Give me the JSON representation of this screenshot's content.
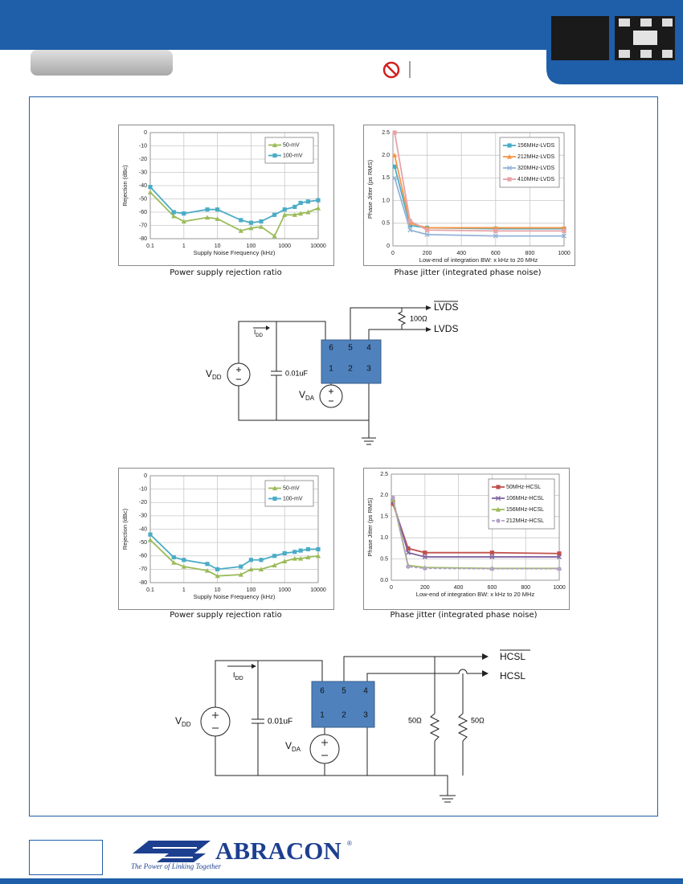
{
  "chart_data": [
    {
      "type": "line",
      "x_label": "Supply Noise Frequency (kHz)",
      "y_label": "Rejection (dBc)",
      "xlog": true,
      "grid": true,
      "legend": "upper right",
      "x": [
        0.1,
        0.5,
        1,
        5,
        10,
        50,
        100,
        200,
        500,
        1000,
        2000,
        3000,
        5000,
        10000
      ],
      "xlim": [
        0.1,
        10000
      ],
      "xticks": [
        0.1,
        1,
        10,
        100,
        1000,
        10000
      ],
      "ylim": [
        -80,
        0
      ],
      "yticks": [
        0,
        -10,
        -20,
        -30,
        -40,
        -50,
        -60,
        -70,
        -80
      ],
      "series": [
        {
          "name": "50-mV",
          "color": "#9bbb59",
          "marker": "triangle",
          "values": [
            -45,
            -63,
            -67,
            -64,
            -65,
            -74,
            -72,
            -71,
            -78,
            -62,
            -62,
            -61,
            -60,
            -57
          ]
        },
        {
          "name": "100-mV",
          "color": "#4bacc6",
          "marker": "square",
          "values": [
            -41,
            -60,
            -61,
            -58,
            -58,
            -66,
            -68,
            -67,
            -62,
            -58,
            -56,
            -53,
            -52,
            -51
          ]
        }
      ]
    },
    {
      "type": "line",
      "x_label": "Low-end of integration BW: x kHz to 20 MHz",
      "y_label": "Phase Jitter (ps RMS)",
      "xlog": false,
      "grid": true,
      "legend": "upper right",
      "x": [
        10,
        100,
        200,
        600,
        1000
      ],
      "xlim": [
        0,
        1000
      ],
      "xticks": [
        0,
        200,
        400,
        600,
        800,
        1000
      ],
      "ylim": [
        0,
        2.5
      ],
      "yticks": [
        0,
        0.5,
        {
          "value": 1,
          "label": "1.0"
        },
        1.5,
        {
          "value": 2,
          "label": "2.0"
        },
        2.5
      ],
      "series": [
        {
          "name": "156MHz-LVDS",
          "color": "#4bacc6",
          "marker": "square",
          "values": [
            1.75,
            0.45,
            0.4,
            0.38,
            0.38
          ]
        },
        {
          "name": "212MHz-LVDS",
          "color": "#f79646",
          "marker": "triangle",
          "values": [
            2.0,
            0.5,
            0.4,
            0.4,
            0.4
          ]
        },
        {
          "name": "320MHz-LVDS",
          "color": "#95b3d7",
          "marker": "x",
          "values": [
            1.5,
            0.35,
            0.25,
            0.22,
            0.22
          ]
        },
        {
          "name": "410MHz-LVDS",
          "color": "#e6a3a6",
          "marker": "square",
          "values": [
            2.5,
            0.55,
            0.35,
            0.33,
            0.33
          ]
        }
      ]
    },
    {
      "type": "line",
      "x_label": "Supply Noise Frequency (kHz)",
      "y_label": "Rejection (dBc)",
      "xlog": true,
      "grid": true,
      "legend": "upper right",
      "x": [
        0.1,
        0.5,
        1,
        5,
        10,
        50,
        100,
        200,
        500,
        1000,
        2000,
        3000,
        5000,
        10000
      ],
      "xlim": [
        0.1,
        10000
      ],
      "xticks": [
        0.1,
        1,
        10,
        100,
        1000,
        10000
      ],
      "ylim": [
        -80,
        0
      ],
      "yticks": [
        0,
        -10,
        -20,
        -30,
        -40,
        -50,
        -60,
        -70,
        -80
      ],
      "series": [
        {
          "name": "50-mV",
          "color": "#9bbb59",
          "marker": "triangle",
          "values": [
            -48,
            -65,
            -68,
            -71,
            -75,
            -74,
            -70,
            -70,
            -67,
            -64,
            -62,
            -62,
            -61,
            -60
          ]
        },
        {
          "name": "100-mV",
          "color": "#4bacc6",
          "marker": "square",
          "values": [
            -44,
            -61,
            -63,
            -66,
            -70,
            -68,
            -63,
            -63,
            -60,
            -58,
            -57,
            -56,
            -55,
            -55
          ]
        }
      ]
    },
    {
      "type": "line",
      "x_label": "Low-end of integration BW: x kHz to 20 MHz",
      "y_label": "Phase Jitter (ps RMS)",
      "xlog": false,
      "grid": true,
      "legend": "upper right",
      "x": [
        10,
        100,
        200,
        600,
        1000
      ],
      "xlim": [
        0,
        1000
      ],
      "xticks": [
        0,
        200,
        400,
        600,
        800,
        1000
      ],
      "ylim": [
        0,
        2.5
      ],
      "yticks": [
        {
          "value": 0,
          "label": "0.0"
        },
        0.5,
        {
          "value": 1,
          "label": "1.0"
        },
        1.5,
        {
          "value": 2,
          "label": "2.0"
        },
        2.5
      ],
      "series": [
        {
          "name": "50MHz-HCSL",
          "color": "#c0504d",
          "marker": "square",
          "values": [
            1.8,
            0.75,
            0.65,
            0.65,
            0.63
          ]
        },
        {
          "name": "106MHz-HCSL",
          "color": "#8064a2",
          "marker": "x",
          "values": [
            1.85,
            0.65,
            0.55,
            0.55,
            0.55
          ]
        },
        {
          "name": "156MHz-HCSL",
          "color": "#9bbb59",
          "marker": "triangle",
          "values": [
            1.9,
            0.35,
            0.3,
            0.28,
            0.28
          ]
        },
        {
          "name": "212MHz-HCSL",
          "color": "#b3a2c7",
          "marker": "circle",
          "dash": true,
          "values": [
            1.95,
            0.32,
            0.28,
            0.27,
            0.27
          ]
        }
      ]
    }
  ],
  "captions": [
    "Power supply rejection ratio",
    "Phase jitter (integrated phase noise)",
    "Power supply rejection ratio",
    "Phase jitter (integrated phase noise)"
  ],
  "lvds_circuit": {
    "out_inverted": "LVDS",
    "out": "LVDS",
    "resistor": "100Ω",
    "current": {
      "base": "I",
      "sub": "DD"
    },
    "supply": {
      "base": "V",
      "sub": "DD"
    },
    "capacitor": "0.01uF",
    "analog_supply": {
      "base": "V",
      "sub": "DA"
    },
    "pins": [
      "6",
      "5",
      "4",
      "1",
      "2",
      "3"
    ]
  },
  "hcsl_circuit": {
    "out_inverted": "HCSL",
    "out": "HCSL",
    "resistors": [
      "50Ω",
      "50Ω"
    ],
    "current": {
      "base": "I",
      "sub": "DD"
    },
    "supply": {
      "base": "V",
      "sub": "DD"
    },
    "capacitor": "0.01uF",
    "analog_supply": {
      "base": "V",
      "sub": "DA"
    },
    "pins": [
      "6",
      "5",
      "4",
      "1",
      "2",
      "3"
    ]
  },
  "footer": {
    "brand": "ABRACON",
    "registered": "®",
    "tagline": "The Power of Linking Together"
  }
}
